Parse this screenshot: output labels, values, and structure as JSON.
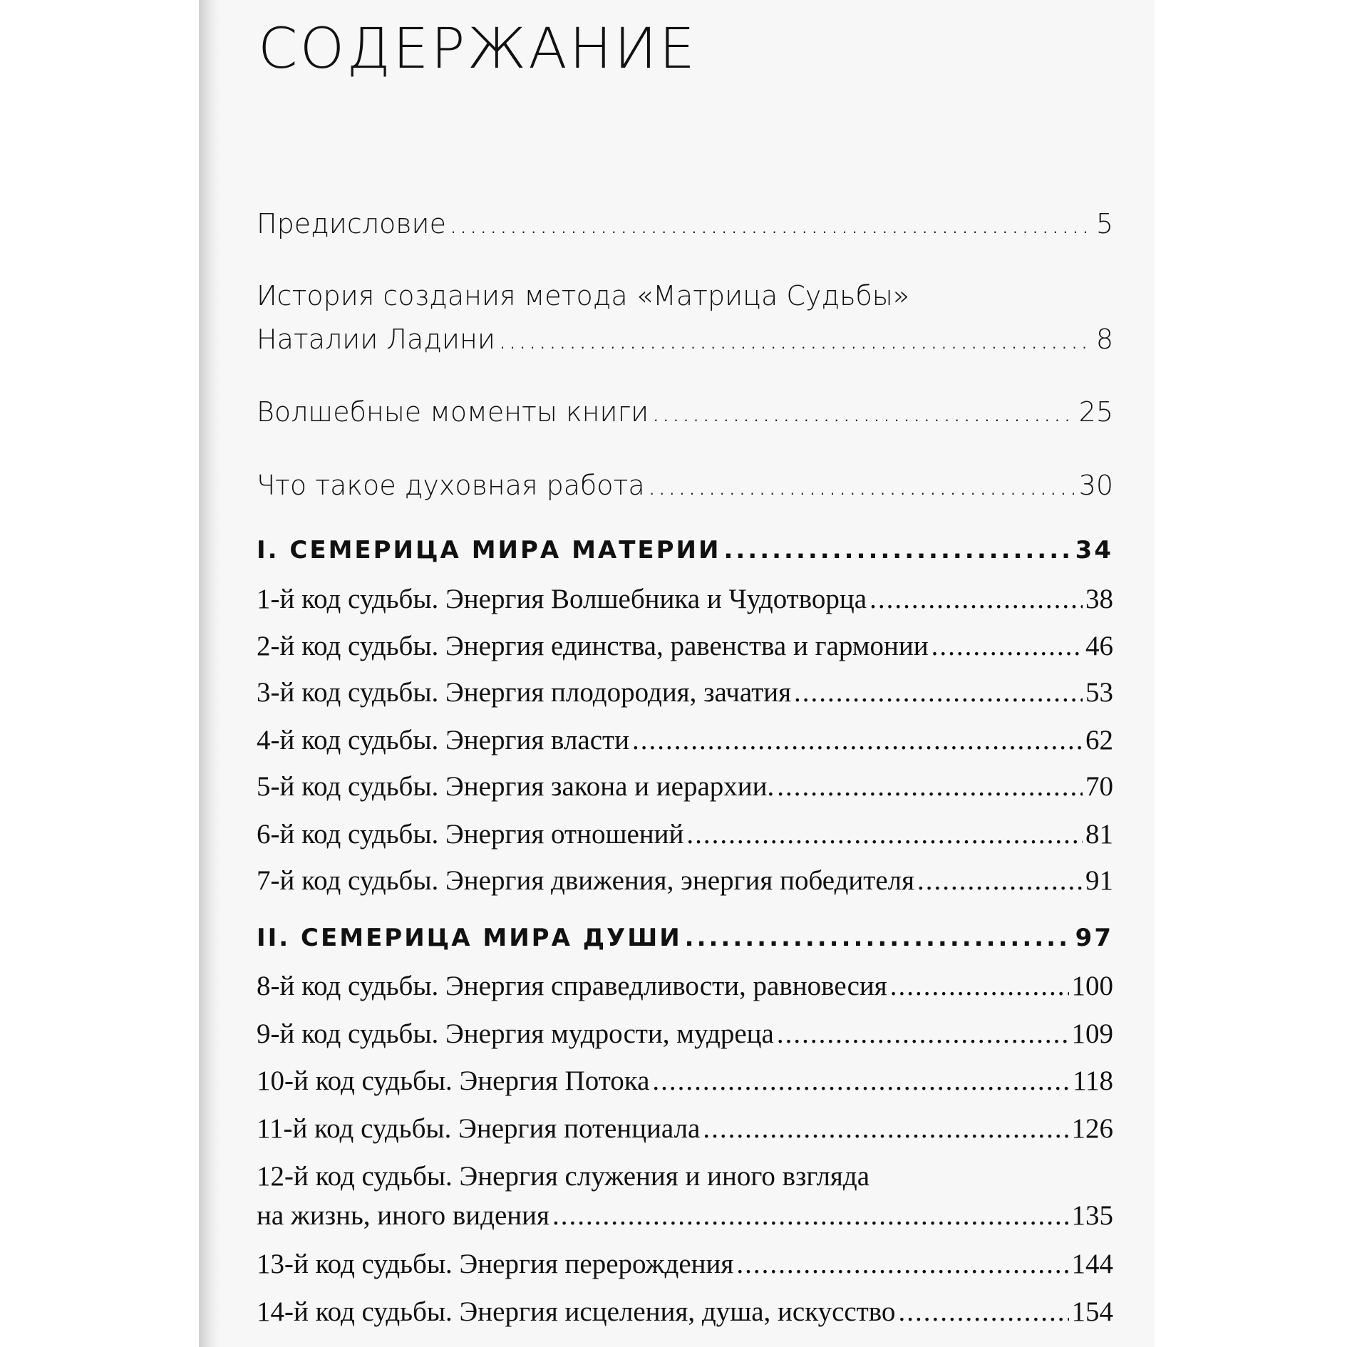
{
  "heading": "СОДЕРЖАНИЕ",
  "entries": [
    {
      "title": "Предисловие",
      "page": "5"
    },
    {
      "title_line1": "История создания метода «Матрица Судьбы»",
      "title": "Наталии Ладини",
      "page": "8"
    },
    {
      "title": "Волшебные моменты книги",
      "page": "25"
    },
    {
      "title": "Что такое духовная работа",
      "page": "30"
    },
    {
      "title": "I. СЕМЕРИЦА МИРА МАТЕРИИ",
      "page": "34"
    },
    {
      "title": "1-й код судьбы. Энергия Волшебника и Чудотворца",
      "page": "38"
    },
    {
      "title": "2-й код судьбы. Энергия единства, равенства и гармонии",
      "page": "46"
    },
    {
      "title": "3-й код судьбы. Энергия плодородия, зачатия",
      "page": "53"
    },
    {
      "title": "4-й код судьбы. Энергия власти",
      "page": "62"
    },
    {
      "title": "5-й код судьбы. Энергия закона и иерархии.",
      "page": "70"
    },
    {
      "title": "6-й код судьбы. Энергия отношений",
      "page": "81"
    },
    {
      "title": "7-й код судьбы. Энергия движения, энергия победителя",
      "page": "91"
    },
    {
      "title": "II. СЕМЕРИЦА МИРА ДУШИ",
      "page": "97"
    },
    {
      "title": "8-й код судьбы. Энергия справедливости, равновесия",
      "page": "100"
    },
    {
      "title": "9-й код судьбы. Энергия мудрости, мудреца",
      "page": "109"
    },
    {
      "title": "10-й код судьбы. Энергия Потока",
      "page": "118"
    },
    {
      "title": "11-й код судьбы. Энергия потенциала",
      "page": "126"
    },
    {
      "title_line1": "12-й код судьбы. Энергия служения и иного взгляда",
      "title": "на жизнь, иного видения",
      "page": "135"
    },
    {
      "title": "13-й код судьбы. Энергия перерождения",
      "page": "144"
    },
    {
      "title": "14-й код судьбы. Энергия исцеления, душа, искусство",
      "page": "154"
    }
  ]
}
